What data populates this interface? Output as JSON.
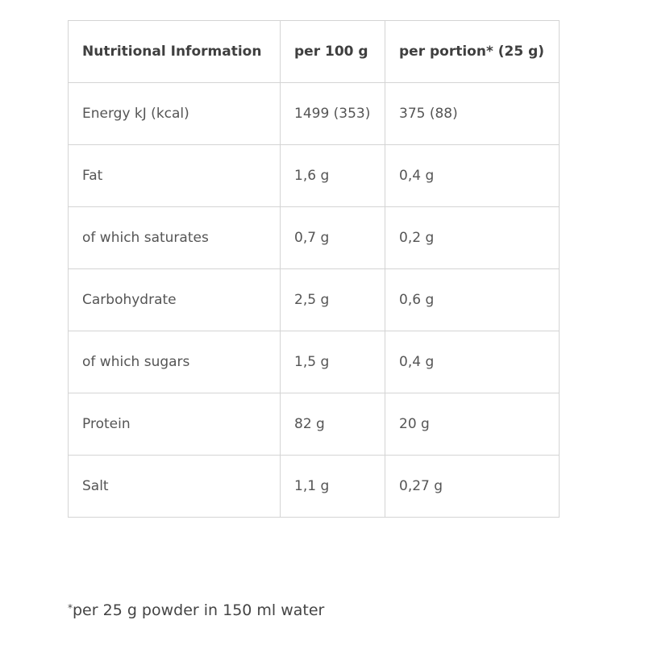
{
  "table": {
    "headers": [
      "Nutritional Information",
      "per 100 g",
      "per portion* (25 g)"
    ],
    "rows": [
      [
        "Energy kJ (kcal)",
        "1499 (353)",
        "375 (88)"
      ],
      [
        "Fat",
        "1,6 g",
        "0,4 g"
      ],
      [
        "of which saturates",
        "0,7 g",
        "0,2 g"
      ],
      [
        "Carbohydrate",
        "2,5 g",
        "0,6 g"
      ],
      [
        "of which sugars",
        "1,5 g",
        "0,4 g"
      ],
      [
        "Protein",
        "82 g",
        "20 g"
      ],
      [
        "Salt",
        "1,1 g",
        "0,27 g"
      ]
    ]
  },
  "footnote": {
    "mark": "*",
    "text": "per 25 g powder in 150 ml water"
  }
}
